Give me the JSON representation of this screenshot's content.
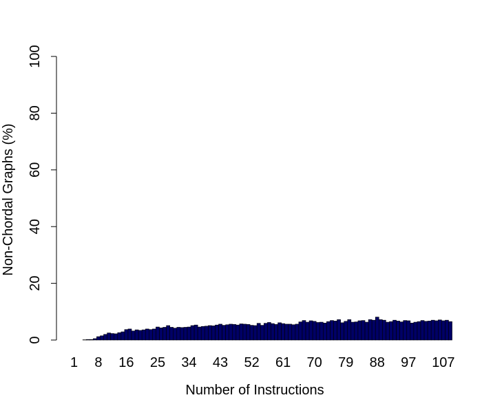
{
  "chart_data": {
    "type": "bar",
    "title": "",
    "xlabel": "Number of Instructions",
    "ylabel": "Non-Chordal Graphs (%)",
    "ylim": [
      0,
      100
    ],
    "yticks": [
      "0",
      "20",
      "40",
      "60",
      "80",
      "100"
    ],
    "xticks": [
      "1",
      "8",
      "16",
      "25",
      "34",
      "43",
      "52",
      "61",
      "70",
      "79",
      "88",
      "97",
      "107"
    ],
    "x_start": 1,
    "grid": false,
    "bar_color": "#000066",
    "values": [
      0,
      0,
      0,
      0.1,
      0.2,
      0.2,
      0.5,
      1.2,
      1.5,
      2.0,
      2.5,
      2.3,
      2.2,
      2.6,
      2.9,
      3.7,
      3.9,
      3.2,
      3.6,
      3.4,
      3.6,
      3.9,
      3.7,
      3.9,
      4.6,
      4.3,
      4.5,
      5.1,
      4.5,
      4.2,
      4.5,
      4.4,
      4.5,
      4.6,
      5.1,
      5.3,
      4.6,
      4.8,
      4.9,
      5.1,
      5.0,
      5.3,
      5.6,
      5.2,
      5.4,
      5.6,
      5.5,
      5.3,
      5.7,
      5.6,
      5.5,
      5.2,
      5.1,
      5.9,
      5.2,
      5.9,
      6.2,
      5.8,
      5.5,
      6.1,
      5.8,
      5.6,
      5.6,
      5.4,
      5.6,
      6.4,
      6.9,
      6.3,
      6.8,
      6.6,
      6.2,
      6.3,
      6.0,
      6.5,
      6.9,
      6.7,
      7.2,
      6.1,
      6.6,
      7.2,
      6.3,
      6.4,
      6.8,
      6.9,
      6.3,
      7.2,
      7.0,
      8.1,
      7.2,
      7.0,
      6.3,
      6.5,
      7.0,
      6.7,
      6.4,
      6.9,
      6.8,
      6.0,
      6.3,
      6.5,
      6.9,
      6.6,
      6.7,
      7.0,
      6.8,
      7.1,
      6.8,
      7.0,
      6.5
    ]
  }
}
